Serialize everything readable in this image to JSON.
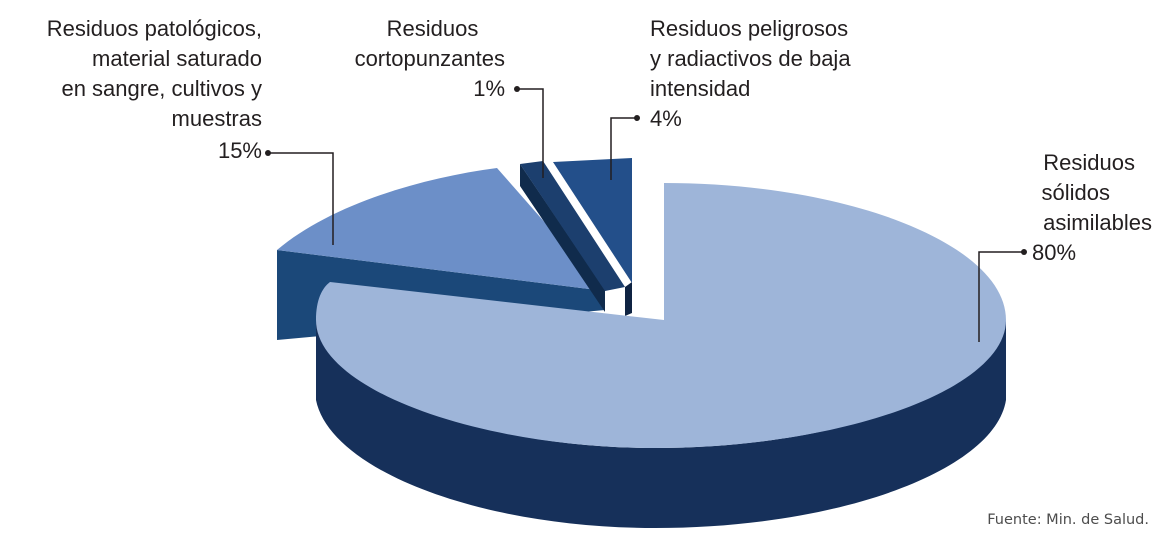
{
  "chart_data": {
    "type": "pie",
    "variant": "3d-exploded",
    "title": "",
    "slices": [
      {
        "label_lines": [
          "Residuos",
          "sólidos",
          "asimilables"
        ],
        "value": 80,
        "value_label": "80%",
        "color": "#9eb5d9",
        "side_color": "#16305a"
      },
      {
        "label_lines": [
          "Residuos patológicos,",
          "material saturado",
          "en sangre, cultivos y",
          "muestras"
        ],
        "value": 15,
        "value_label": "15%",
        "color": "#6c8fc8",
        "side_color": "#1b4879"
      },
      {
        "label_lines": [
          "Residuos",
          "cortopunzantes"
        ],
        "value": 1,
        "value_label": "1%",
        "color": "#1c3f6e",
        "side_color": "#102b4c"
      },
      {
        "label_lines": [
          "Residuos peligrosos",
          "y radiactivos de baja",
          "intensidad"
        ],
        "value": 4,
        "value_label": "4%",
        "color": "#234f8a",
        "side_color": "#0f2342"
      }
    ]
  },
  "source": "Fuente: Min. de Salud."
}
